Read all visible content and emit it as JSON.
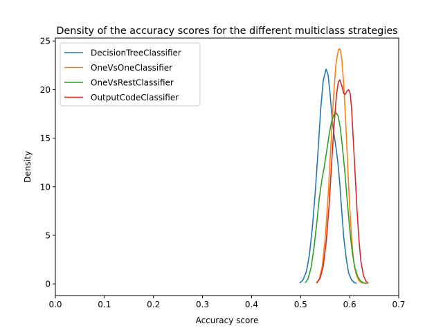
{
  "chart_data": {
    "type": "line",
    "title": "Density of the accuracy scores for the different multiclass strategies",
    "xlabel": "Accuracy score",
    "ylabel": "Density",
    "xlim": [
      0.0,
      0.7
    ],
    "ylim": [
      -1.2,
      25.3
    ],
    "xticks": [
      0.0,
      0.1,
      0.2,
      0.3,
      0.4,
      0.5,
      0.6,
      0.7
    ],
    "xtick_labels": [
      "0.0",
      "0.1",
      "0.2",
      "0.3",
      "0.4",
      "0.5",
      "0.6",
      "0.7"
    ],
    "yticks": [
      0,
      5,
      10,
      15,
      20,
      25
    ],
    "ytick_labels": [
      "0",
      "5",
      "10",
      "15",
      "20",
      "25"
    ],
    "grid": false,
    "legend_position": "upper left",
    "series": [
      {
        "name": "DecisionTreeClassifier",
        "color": "#1f77b4",
        "points": [
          [
            0.498,
            0.1
          ],
          [
            0.505,
            0.4
          ],
          [
            0.512,
            1.3
          ],
          [
            0.518,
            3.0
          ],
          [
            0.524,
            5.8
          ],
          [
            0.53,
            9.5
          ],
          [
            0.536,
            14.0
          ],
          [
            0.541,
            18.0
          ],
          [
            0.546,
            20.9
          ],
          [
            0.552,
            22.1
          ],
          [
            0.556,
            21.5
          ],
          [
            0.56,
            19.6
          ],
          [
            0.564,
            17.2
          ],
          [
            0.568,
            15.4
          ],
          [
            0.572,
            14.1
          ],
          [
            0.576,
            12.5
          ],
          [
            0.58,
            10.2
          ],
          [
            0.584,
            7.4
          ],
          [
            0.588,
            4.8
          ],
          [
            0.593,
            2.6
          ],
          [
            0.598,
            1.1
          ],
          [
            0.604,
            0.4
          ],
          [
            0.609,
            0.15
          ],
          [
            0.614,
            0.05
          ]
        ]
      },
      {
        "name": "OneVsOneClassifier",
        "color": "#ff7f0e",
        "points": [
          [
            0.532,
            0.1
          ],
          [
            0.538,
            0.5
          ],
          [
            0.544,
            1.8
          ],
          [
            0.55,
            4.6
          ],
          [
            0.556,
            9.0
          ],
          [
            0.562,
            14.5
          ],
          [
            0.567,
            19.2
          ],
          [
            0.572,
            22.6
          ],
          [
            0.577,
            24.1
          ],
          [
            0.58,
            24.2
          ],
          [
            0.584,
            23.2
          ],
          [
            0.588,
            20.5
          ],
          [
            0.592,
            16.6
          ],
          [
            0.596,
            12.2
          ],
          [
            0.6,
            8.0
          ],
          [
            0.604,
            4.7
          ],
          [
            0.608,
            2.4
          ],
          [
            0.613,
            1.0
          ],
          [
            0.619,
            0.3
          ],
          [
            0.627,
            0.05
          ]
        ]
      },
      {
        "name": "OneVsRestClassifier",
        "color": "#2ca02c",
        "points": [
          [
            0.509,
            0.1
          ],
          [
            0.515,
            0.5
          ],
          [
            0.521,
            1.6
          ],
          [
            0.527,
            3.6
          ],
          [
            0.533,
            6.3
          ],
          [
            0.538,
            8.8
          ],
          [
            0.543,
            10.6
          ],
          [
            0.548,
            12.0
          ],
          [
            0.553,
            13.6
          ],
          [
            0.558,
            15.3
          ],
          [
            0.563,
            16.7
          ],
          [
            0.568,
            17.4
          ],
          [
            0.573,
            17.6
          ],
          [
            0.577,
            17.2
          ],
          [
            0.581,
            16.0
          ],
          [
            0.585,
            14.2
          ],
          [
            0.59,
            11.6
          ],
          [
            0.595,
            8.6
          ],
          [
            0.6,
            5.7
          ],
          [
            0.605,
            3.4
          ],
          [
            0.61,
            1.8
          ],
          [
            0.616,
            0.8
          ],
          [
            0.622,
            0.3
          ],
          [
            0.629,
            0.1
          ],
          [
            0.635,
            0.03
          ]
        ]
      },
      {
        "name": "OutputCodeClassifier",
        "color": "#d62728",
        "points": [
          [
            0.533,
            0.1
          ],
          [
            0.54,
            0.6
          ],
          [
            0.546,
            1.8
          ],
          [
            0.552,
            4.2
          ],
          [
            0.558,
            8.0
          ],
          [
            0.563,
            12.2
          ],
          [
            0.568,
            16.2
          ],
          [
            0.573,
            19.4
          ],
          [
            0.577,
            20.8
          ],
          [
            0.58,
            21.0
          ],
          [
            0.584,
            20.4
          ],
          [
            0.588,
            19.6
          ],
          [
            0.591,
            19.5
          ],
          [
            0.594,
            19.8
          ],
          [
            0.598,
            20.0
          ],
          [
            0.601,
            19.6
          ],
          [
            0.604,
            18.0
          ],
          [
            0.607,
            15.2
          ],
          [
            0.611,
            11.5
          ],
          [
            0.615,
            7.6
          ],
          [
            0.619,
            4.5
          ],
          [
            0.623,
            2.3
          ],
          [
            0.628,
            0.9
          ],
          [
            0.633,
            0.3
          ],
          [
            0.638,
            0.05
          ]
        ]
      }
    ]
  }
}
